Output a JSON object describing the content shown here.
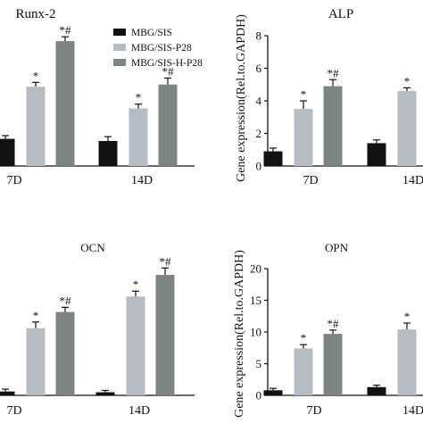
{
  "chart_data": [
    {
      "type": "bar",
      "title": "Runx-2",
      "ylabel": "",
      "categories": [
        "7D",
        "14D"
      ],
      "ylim": [
        0,
        6
      ],
      "y_ticks": [],
      "series": [
        {
          "name": "MBG/SIS",
          "values": [
            1.25,
            1.15
          ],
          "errors": [
            0.15,
            0.2
          ]
        },
        {
          "name": "MBG/SIS-P28",
          "values": [
            3.65,
            2.65
          ],
          "errors": [
            0.2,
            0.2
          ]
        },
        {
          "name": "MBG/SIS-H-P28",
          "values": [
            5.75,
            3.75
          ],
          "errors": [
            0.2,
            0.3
          ]
        }
      ],
      "annotations": [
        [
          "",
          "*",
          "*#"
        ],
        [
          "",
          "*",
          "*#"
        ]
      ],
      "legend": "top-left"
    },
    {
      "type": "bar",
      "title": "ALP",
      "ylabel": "Gene expression(Rel.to.GAPDH)",
      "categories": [
        "7D",
        "14D"
      ],
      "ylim": [
        0,
        8
      ],
      "y_ticks": [
        "0",
        "2",
        "4",
        "6",
        "8"
      ],
      "series": [
        {
          "name": "MBG/SIS",
          "values": [
            0.9,
            1.4
          ],
          "errors": [
            0.2,
            0.2
          ]
        },
        {
          "name": "MBG/SIS-P28",
          "values": [
            3.5,
            4.6
          ],
          "errors": [
            0.5,
            0.2
          ]
        },
        {
          "name": "MBG/SIS-H-P28",
          "values": [
            4.9,
            null
          ],
          "errors": [
            0.4,
            null
          ]
        }
      ],
      "annotations": [
        [
          "",
          "*",
          "*#"
        ],
        [
          "",
          "*",
          ""
        ]
      ]
    },
    {
      "type": "bar",
      "title": "OCN",
      "ylabel": "",
      "categories": [
        "7D",
        "14D"
      ],
      "ylim": [
        0,
        10
      ],
      "y_ticks": [],
      "series": [
        {
          "name": "MBG/SIS",
          "values": [
            0.25,
            0.2
          ],
          "errors": [
            0.15,
            0.12
          ]
        },
        {
          "name": "MBG/SIS-P28",
          "values": [
            4.35,
            6.4
          ],
          "errors": [
            0.4,
            0.35
          ]
        },
        {
          "name": "MBG/SIS-H-P28",
          "values": [
            5.4,
            7.8
          ],
          "errors": [
            0.3,
            0.45
          ]
        }
      ],
      "annotations": [
        [
          "",
          "*",
          "*#"
        ],
        [
          "",
          "*",
          "*#"
        ]
      ]
    },
    {
      "type": "bar",
      "title": "OPN",
      "ylabel": "Gene expression(Rel.to.GAPDH)",
      "categories": [
        "7D",
        "14D"
      ],
      "ylim": [
        0,
        20
      ],
      "y_ticks": [
        "0",
        "5",
        "10",
        "15",
        "20"
      ],
      "series": [
        {
          "name": "MBG/SIS",
          "values": [
            0.8,
            1.3
          ],
          "errors": [
            0.3,
            0.3
          ]
        },
        {
          "name": "MBG/SIS-P28",
          "values": [
            7.4,
            10.4
          ],
          "errors": [
            0.6,
            1.0
          ]
        },
        {
          "name": "MBG/SIS-H-P28",
          "values": [
            9.7,
            null
          ],
          "errors": [
            0.6,
            null
          ]
        }
      ],
      "annotations": [
        [
          "",
          "*",
          "*#"
        ],
        [
          "",
          "*",
          ""
        ]
      ]
    }
  ],
  "colors": [
    "#111111",
    "#b5bcc3",
    "#7d8584"
  ]
}
